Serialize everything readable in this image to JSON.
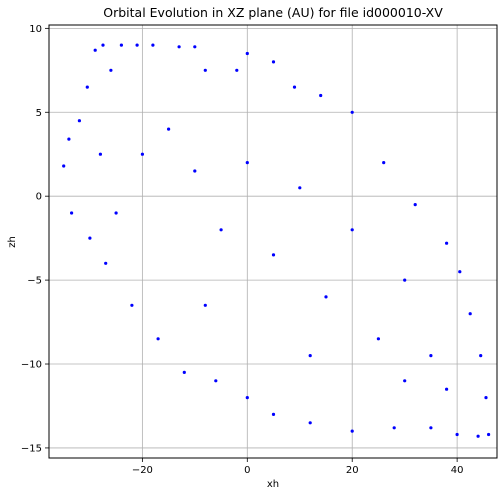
{
  "chart_data": {
    "type": "scatter",
    "title": "Orbital Evolution in XZ plane (AU) for file id000010-XV",
    "xlabel": "xh",
    "ylabel": "zh",
    "xlim": [
      -37.8,
      47.6
    ],
    "ylim": [
      -15.6,
      10.2
    ],
    "xticks": [
      -20,
      0,
      20,
      40
    ],
    "yticks": [
      -15,
      -10,
      -5,
      0,
      5,
      10
    ],
    "grid": true,
    "point_color": "#0000ff",
    "sample_points": [
      [
        -35,
        1.8
      ],
      [
        -34,
        3.4
      ],
      [
        -33.5,
        -1
      ],
      [
        -32,
        4.5
      ],
      [
        -30.5,
        6.5
      ],
      [
        -29,
        8.7
      ],
      [
        -27.5,
        9.0
      ],
      [
        -26,
        7.5
      ],
      [
        -24,
        9.0
      ],
      [
        -21,
        9.0
      ],
      [
        -18,
        9.0
      ],
      [
        -13,
        8.9
      ],
      [
        -10,
        8.9
      ],
      [
        -8,
        7.5
      ],
      [
        -2,
        7.5
      ],
      [
        0,
        8.5
      ],
      [
        5,
        8.0
      ],
      [
        9,
        6.5
      ],
      [
        14,
        6.0
      ],
      [
        20,
        5.0
      ],
      [
        26,
        2.0
      ],
      [
        32,
        -0.5
      ],
      [
        38,
        -2.8
      ],
      [
        40.5,
        -4.5
      ],
      [
        42.5,
        -7.0
      ],
      [
        44.5,
        -9.5
      ],
      [
        45.5,
        -12.0
      ],
      [
        46,
        -14.2
      ],
      [
        44,
        -14.3
      ],
      [
        40,
        -14.2
      ],
      [
        35,
        -13.8
      ],
      [
        28,
        -13.8
      ],
      [
        20,
        -14.0
      ],
      [
        12,
        -13.5
      ],
      [
        5,
        -13.0
      ],
      [
        0,
        -12.0
      ],
      [
        -6,
        -11.0
      ],
      [
        -12,
        -10.5
      ],
      [
        -17,
        -8.5
      ],
      [
        -22,
        -6.5
      ],
      [
        -27,
        -4.0
      ],
      [
        -30,
        -2.5
      ],
      [
        -25,
        -1.0
      ],
      [
        -20,
        2.5
      ],
      [
        -15,
        4.0
      ],
      [
        -10,
        1.5
      ],
      [
        -5,
        -2.0
      ],
      [
        0,
        2.0
      ],
      [
        5,
        -3.5
      ],
      [
        10,
        0.5
      ],
      [
        15,
        -6.0
      ],
      [
        20,
        -2.0
      ],
      [
        25,
        -8.5
      ],
      [
        30,
        -5.0
      ],
      [
        35,
        -9.5
      ],
      [
        -28,
        2.5
      ],
      [
        -8,
        -6.5
      ],
      [
        12,
        -9.5
      ],
      [
        30,
        -11.0
      ],
      [
        38,
        -11.5
      ]
    ]
  }
}
